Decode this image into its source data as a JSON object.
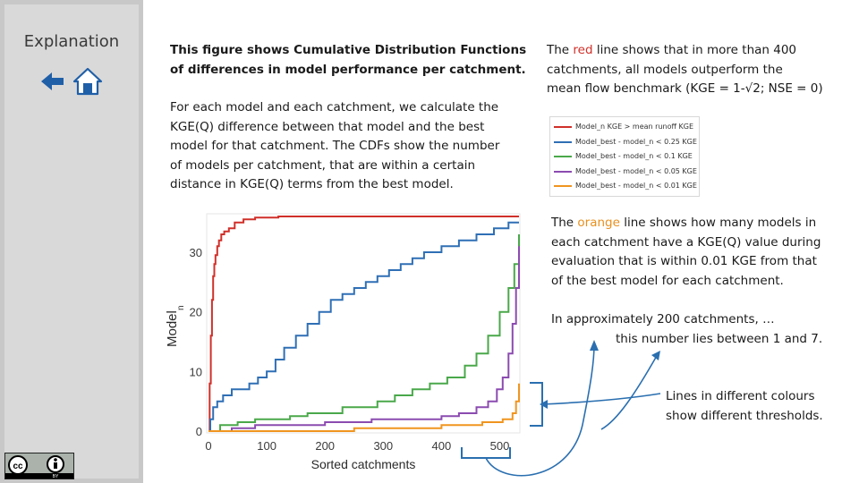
{
  "sidebar": {
    "title": "Explanation"
  },
  "icons": {
    "back": "arrow-left-icon",
    "home": "home-icon",
    "license": "cc-by-license-icon"
  },
  "texts": {
    "intro_line1": "This figure shows Cumulative Distribution Functions",
    "intro_line2": "of differences in model performance per catchment.",
    "method_lines": [
      "For each model and each catchment, we calculate the",
      "KGE(Q) difference between that model and the best",
      "model for that catchment. The CDFs show the number",
      "of models per catchment, that are within a certain",
      "distance in KGE(Q) terms from the best model."
    ],
    "red_pre": "The ",
    "red_word": "red",
    "red_post": " line shows that in more than 400",
    "red_line2": "catchments, all models outperform the",
    "red_line3": "mean flow benchmark (KGE = 1-√2; NSE = 0)",
    "orange_pre": "The ",
    "orange_word": "orange",
    "orange_post": " line shows how many models in",
    "orange_lines": [
      "each catchment have a KGE(Q) value during",
      "evaluation that is within 0.01 KGE from that",
      "of the best model for each catchment."
    ],
    "approx_line1": "In approximately 200 catchments, …",
    "approx_line2": "this number lies between 1 and 7.",
    "colours_line1": "Lines in different colours",
    "colours_line2": "show different thresholds."
  },
  "colors": {
    "red": "#d0302a",
    "blue": "#2f6fb5",
    "green": "#4aa84a",
    "purple": "#8b4bb0",
    "orange": "#f0951f",
    "annotation": "#2a6fb0"
  },
  "legend": [
    {
      "color": "#d0302a",
      "label": "Model_n KGE > mean runoff KGE"
    },
    {
      "color": "#2f6fb5",
      "label": "Model_best - model_n < 0.25 KGE"
    },
    {
      "color": "#4aa84a",
      "label": "Model_best - model_n < 0.1 KGE"
    },
    {
      "color": "#8b4bb0",
      "label": "Model_best - model_n < 0.05 KGE"
    },
    {
      "color": "#f0951f",
      "label": "Model_best - model_n < 0.01 KGE"
    }
  ],
  "chart_data": {
    "type": "line",
    "xlabel": "Sorted catchments",
    "ylabel": "Model_n",
    "xlim": [
      0,
      533
    ],
    "ylim": [
      0,
      36
    ],
    "xticks": [
      0,
      100,
      200,
      300,
      400,
      500
    ],
    "yticks": [
      0,
      10,
      20,
      30
    ],
    "series": [
      {
        "color": "#d0302a",
        "x": [
          0,
          2,
          4,
          6,
          8,
          10,
          12,
          15,
          18,
          22,
          27,
          35,
          45,
          60,
          80,
          120,
          160,
          220,
          300,
          400,
          440,
          480,
          533
        ],
        "y": [
          0,
          8,
          16,
          22,
          26,
          28,
          29.5,
          31,
          32,
          33,
          33.5,
          34,
          35,
          35.5,
          35.8,
          36,
          36,
          36,
          36,
          36,
          36,
          36,
          36
        ]
      },
      {
        "color": "#2f6fb5",
        "x": [
          0,
          3,
          8,
          15,
          25,
          40,
          55,
          70,
          85,
          100,
          115,
          130,
          150,
          170,
          190,
          210,
          230,
          250,
          270,
          290,
          310,
          330,
          350,
          370,
          400,
          430,
          460,
          490,
          515,
          533
        ],
        "y": [
          0,
          2,
          4,
          5,
          6,
          7,
          7,
          8,
          9,
          10,
          12,
          14,
          16,
          18,
          20,
          22,
          23,
          24,
          25,
          26,
          27,
          28,
          29,
          30,
          31,
          32,
          33,
          34,
          35,
          35
        ]
      },
      {
        "color": "#4aa84a",
        "x": [
          0,
          20,
          50,
          80,
          110,
          140,
          170,
          200,
          230,
          260,
          290,
          320,
          350,
          380,
          410,
          440,
          460,
          480,
          500,
          515,
          525,
          533
        ],
        "y": [
          0,
          1,
          1.5,
          2,
          2,
          2.5,
          3,
          3,
          4,
          4,
          5,
          6,
          7,
          8,
          9,
          11,
          13,
          16,
          20,
          24,
          28,
          33
        ]
      },
      {
        "color": "#8b4bb0",
        "x": [
          0,
          40,
          80,
          120,
          160,
          200,
          240,
          280,
          320,
          360,
          400,
          430,
          460,
          480,
          495,
          505,
          515,
          522,
          528,
          533
        ],
        "y": [
          0,
          0.5,
          1,
          1,
          1,
          1.5,
          1.5,
          2,
          2,
          2,
          2.5,
          3,
          4,
          5,
          7,
          9,
          13,
          18,
          24,
          31
        ]
      },
      {
        "color": "#f0951f",
        "x": [
          0,
          100,
          200,
          250,
          300,
          350,
          400,
          440,
          470,
          490,
          505,
          515,
          522,
          528,
          533
        ],
        "y": [
          0,
          0,
          0,
          0.5,
          0.5,
          0.5,
          1,
          1,
          1.5,
          1.5,
          2,
          2,
          3,
          5,
          8
        ]
      }
    ]
  }
}
